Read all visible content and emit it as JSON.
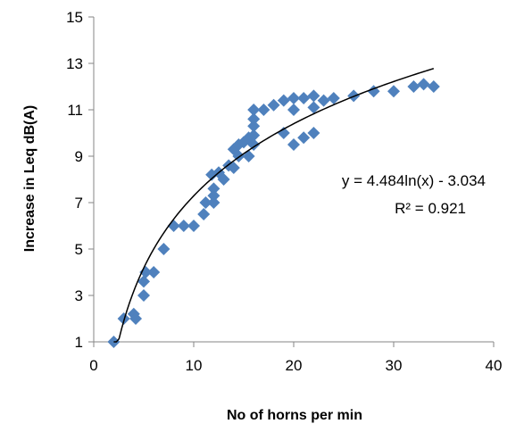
{
  "chart_data": {
    "type": "scatter",
    "xlabel": "No of horns per min",
    "ylabel": "Increase in Leq dB(A)",
    "xlim": [
      0,
      40
    ],
    "ylim": [
      1,
      15
    ],
    "x_ticks": [
      0,
      10,
      20,
      30,
      40
    ],
    "y_ticks": [
      1,
      3,
      5,
      7,
      9,
      11,
      13,
      15
    ],
    "grid": false,
    "marker": "diamond",
    "marker_color": "#4f81bd",
    "points": [
      [
        2,
        1
      ],
      [
        3,
        2
      ],
      [
        4,
        2.2
      ],
      [
        4.2,
        2
      ],
      [
        5,
        3
      ],
      [
        5,
        3.6
      ],
      [
        5.2,
        4
      ],
      [
        6,
        4
      ],
      [
        7,
        5
      ],
      [
        8,
        6
      ],
      [
        9,
        6
      ],
      [
        10,
        6
      ],
      [
        11,
        6.5
      ],
      [
        11.2,
        7
      ],
      [
        12,
        7
      ],
      [
        12,
        7.3
      ],
      [
        12,
        7.6
      ],
      [
        11.8,
        8.2
      ],
      [
        12.5,
        8.3
      ],
      [
        13,
        8
      ],
      [
        13.5,
        8.6
      ],
      [
        14,
        8.5
      ],
      [
        14,
        9.3
      ],
      [
        14.5,
        9
      ],
      [
        14.5,
        9.5
      ],
      [
        15,
        9.6
      ],
      [
        15.5,
        9
      ],
      [
        15.5,
        9.8
      ],
      [
        16,
        9.5
      ],
      [
        16,
        9.9
      ],
      [
        16,
        10.3
      ],
      [
        16,
        10.6
      ],
      [
        16,
        11
      ],
      [
        17,
        11
      ],
      [
        18,
        11.2
      ],
      [
        19,
        10
      ],
      [
        19,
        11.4
      ],
      [
        20,
        9.5
      ],
      [
        20,
        11
      ],
      [
        20,
        11.5
      ],
      [
        21,
        9.8
      ],
      [
        21,
        11.5
      ],
      [
        22,
        10
      ],
      [
        22,
        11.1
      ],
      [
        22,
        11.6
      ],
      [
        23,
        11.4
      ],
      [
        24,
        11.5
      ],
      [
        26,
        11.6
      ],
      [
        28,
        11.8
      ],
      [
        30,
        11.8
      ],
      [
        32,
        12
      ],
      [
        33,
        12.1
      ],
      [
        34,
        12
      ]
    ],
    "trendline": {
      "type": "logarithmic",
      "a": 4.484,
      "b": -3.034,
      "x_range": [
        2,
        34
      ],
      "equation_label": "y = 4.484ln(x) - 3.034",
      "r2_label": "R² = 0.921"
    }
  }
}
